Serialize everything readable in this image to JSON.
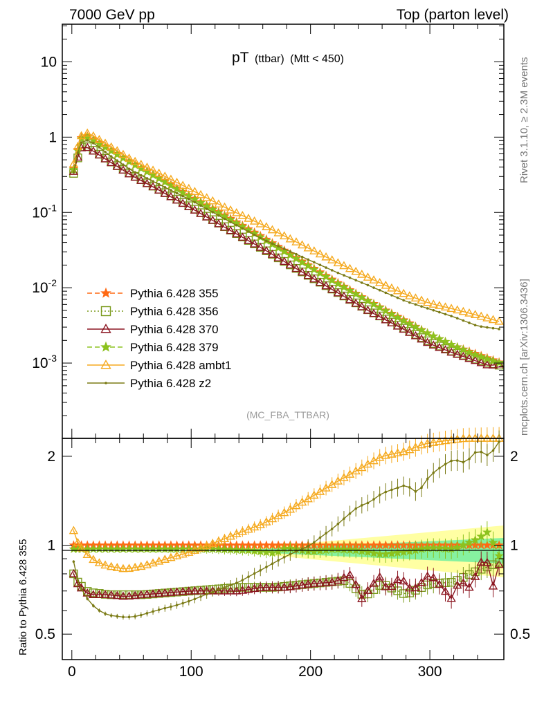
{
  "header": {
    "left": "7000 GeV pp",
    "right": "Top (parton level)"
  },
  "side_labels": {
    "rivet": "Rivet 3.1.10, ≥ 2.3M events",
    "mcplots": "mcplots.cern.ch [arXiv:1306.3436]"
  },
  "chart_data": {
    "type": "line",
    "title": {
      "main": "pT",
      "sub1": "(ttbar)",
      "sub2": "(Mtt < 450)"
    },
    "watermark": "(MC_FBA_TTBAR)",
    "xlim": [
      -8,
      362
    ],
    "x_ticks": [
      "0",
      "100",
      "200",
      "300"
    ],
    "main_panel": {
      "yscale": "log",
      "ylim": [
        0.0001,
        31.6
      ],
      "y_ticks": [
        {
          "base": "10",
          "exp": "-3",
          "value": 0.001
        },
        {
          "base": "10",
          "exp": "-2",
          "value": 0.01
        },
        {
          "base": "10",
          "exp": "-1",
          "value": 0.1
        },
        {
          "base": "1",
          "exp": "",
          "value": 1
        },
        {
          "base": "10",
          "exp": "",
          "value": 10
        }
      ]
    },
    "ratio_panel": {
      "ylabel": "Ratio to Pythia 6.428 355",
      "yscale": "log",
      "ylim": [
        0.41,
        2.3
      ],
      "y_ticks": [
        "0.5",
        "1",
        "2"
      ]
    },
    "series": [
      {
        "name": "Pythia 6.428 355",
        "color": "#ff6a14",
        "line": "dashed",
        "marker": "star",
        "points": [
          [
            1.5,
            0.38
          ],
          [
            5,
            0.68
          ],
          [
            8,
            0.98
          ],
          [
            12,
            1.05
          ],
          [
            15,
            1.0
          ],
          [
            20,
            0.9
          ],
          [
            30,
            0.72
          ],
          [
            50,
            0.46
          ],
          [
            70,
            0.31
          ],
          [
            100,
            0.163
          ],
          [
            130,
            0.088
          ],
          [
            160,
            0.047
          ],
          [
            190,
            0.024
          ],
          [
            220,
            0.0124
          ],
          [
            250,
            0.0065
          ],
          [
            280,
            0.0036
          ],
          [
            300,
            0.0024
          ],
          [
            320,
            0.0017
          ],
          [
            340,
            0.0013
          ],
          [
            360,
            0.001
          ]
        ],
        "ratio": [
          [
            1.5,
            1.0
          ],
          [
            360,
            1.0
          ]
        ]
      },
      {
        "name": "Pythia 6.428 356",
        "color": "#7a9a1c",
        "line": "dotted",
        "marker": "open-square",
        "points": [
          [
            1.5,
            0.33
          ],
          [
            5,
            0.53
          ],
          [
            8,
            0.74
          ],
          [
            12,
            0.76
          ],
          [
            15,
            0.72
          ],
          [
            20,
            0.64
          ],
          [
            30,
            0.5
          ],
          [
            50,
            0.32
          ],
          [
            70,
            0.215
          ],
          [
            100,
            0.118
          ],
          [
            130,
            0.062
          ],
          [
            160,
            0.033
          ],
          [
            190,
            0.0173
          ],
          [
            220,
            0.0092
          ],
          [
            250,
            0.0049
          ],
          [
            280,
            0.0028
          ],
          [
            300,
            0.0019
          ],
          [
            320,
            0.0014
          ],
          [
            340,
            0.0011
          ],
          [
            360,
            0.00092
          ]
        ],
        "ratio": [
          [
            1.5,
            0.8
          ],
          [
            5,
            0.75
          ],
          [
            10,
            0.71
          ],
          [
            15,
            0.69
          ],
          [
            20,
            0.69
          ],
          [
            30,
            0.68
          ],
          [
            45,
            0.68
          ],
          [
            60,
            0.68
          ],
          [
            80,
            0.69
          ],
          [
            100,
            0.7
          ],
          [
            140,
            0.72
          ],
          [
            170,
            0.72
          ],
          [
            200,
            0.74
          ],
          [
            230,
            0.76
          ],
          [
            245,
            0.67
          ],
          [
            260,
            0.74
          ],
          [
            280,
            0.68
          ],
          [
            300,
            0.74
          ],
          [
            320,
            0.75
          ],
          [
            340,
            0.82
          ],
          [
            360,
            0.88
          ]
        ]
      },
      {
        "name": "Pythia 6.428 370",
        "color": "#8b1520",
        "line": "solid",
        "marker": "open-triangle",
        "points": [
          [
            1.5,
            0.35
          ],
          [
            5,
            0.54
          ],
          [
            8,
            0.72
          ],
          [
            12,
            0.74
          ],
          [
            15,
            0.7
          ],
          [
            20,
            0.62
          ],
          [
            30,
            0.49
          ],
          [
            50,
            0.31
          ],
          [
            70,
            0.21
          ],
          [
            100,
            0.114
          ],
          [
            130,
            0.061
          ],
          [
            160,
            0.033
          ],
          [
            190,
            0.0172
          ],
          [
            220,
            0.0091
          ],
          [
            250,
            0.0048
          ],
          [
            280,
            0.0027
          ],
          [
            300,
            0.0018
          ],
          [
            320,
            0.00135
          ],
          [
            340,
            0.00105
          ],
          [
            350,
            0.00092
          ],
          [
            360,
            0.00098
          ]
        ],
        "ratio": [
          [
            1.5,
            0.8
          ],
          [
            5,
            0.74
          ],
          [
            10,
            0.7
          ],
          [
            15,
            0.68
          ],
          [
            20,
            0.68
          ],
          [
            30,
            0.68
          ],
          [
            45,
            0.67
          ],
          [
            60,
            0.68
          ],
          [
            80,
            0.69
          ],
          [
            100,
            0.7
          ],
          [
            120,
            0.7
          ],
          [
            140,
            0.7
          ],
          [
            160,
            0.72
          ],
          [
            180,
            0.72
          ],
          [
            200,
            0.74
          ],
          [
            220,
            0.75
          ],
          [
            235,
            0.8
          ],
          [
            242,
            0.65
          ],
          [
            250,
            0.72
          ],
          [
            258,
            0.78
          ],
          [
            265,
            0.7
          ],
          [
            275,
            0.78
          ],
          [
            285,
            0.7
          ],
          [
            292,
            0.74
          ],
          [
            300,
            0.8
          ],
          [
            310,
            0.72
          ],
          [
            318,
            0.66
          ],
          [
            325,
            0.76
          ],
          [
            333,
            0.72
          ],
          [
            341,
            0.82
          ],
          [
            346,
            0.96
          ],
          [
            352,
            0.7
          ],
          [
            358,
            0.86
          ]
        ]
      },
      {
        "name": "Pythia 6.428 379",
        "color": "#8cc21e",
        "line": "dashed",
        "marker": "star",
        "points": [
          [
            1.5,
            0.37
          ],
          [
            5,
            0.66
          ],
          [
            8,
            0.95
          ],
          [
            12,
            1.02
          ],
          [
            15,
            0.97
          ],
          [
            20,
            0.87
          ],
          [
            30,
            0.7
          ],
          [
            50,
            0.45
          ],
          [
            70,
            0.3
          ],
          [
            100,
            0.158
          ],
          [
            130,
            0.085
          ],
          [
            160,
            0.045
          ],
          [
            190,
            0.0232
          ],
          [
            220,
            0.012
          ],
          [
            250,
            0.0064
          ],
          [
            280,
            0.0035
          ],
          [
            300,
            0.0024
          ],
          [
            320,
            0.0017
          ],
          [
            340,
            0.00125
          ],
          [
            360,
            0.00098
          ]
        ],
        "ratio": [
          [
            1.5,
            0.97
          ],
          [
            10,
            0.97
          ],
          [
            30,
            0.97
          ],
          [
            60,
            0.97
          ],
          [
            90,
            0.97
          ],
          [
            120,
            0.97
          ],
          [
            150,
            0.96
          ],
          [
            170,
            0.94
          ],
          [
            180,
            0.98
          ],
          [
            200,
            0.95
          ],
          [
            220,
            0.97
          ],
          [
            240,
            0.96
          ],
          [
            260,
            0.93
          ],
          [
            280,
            0.95
          ],
          [
            300,
            0.98
          ],
          [
            320,
            0.97
          ],
          [
            340,
            1.05
          ],
          [
            350,
            1.12
          ],
          [
            356,
            0.92
          ]
        ]
      },
      {
        "name": "Pythia 6.428 ambt1",
        "color": "#f5a91e",
        "line": "solid",
        "marker": "open-triangle",
        "points": [
          [
            1.5,
            0.44
          ],
          [
            5,
            0.75
          ],
          [
            8,
            1.04
          ],
          [
            12,
            1.14
          ],
          [
            15,
            1.1
          ],
          [
            20,
            0.99
          ],
          [
            30,
            0.79
          ],
          [
            50,
            0.5
          ],
          [
            70,
            0.35
          ],
          [
            100,
            0.2
          ],
          [
            130,
            0.113
          ],
          [
            160,
            0.068
          ],
          [
            190,
            0.039
          ],
          [
            220,
            0.0225
          ],
          [
            250,
            0.0133
          ],
          [
            280,
            0.0081
          ],
          [
            300,
            0.0062
          ],
          [
            320,
            0.0052
          ],
          [
            340,
            0.0043
          ],
          [
            360,
            0.0035
          ]
        ],
        "ratio": [
          [
            1.5,
            1.12
          ],
          [
            5,
            1.02
          ],
          [
            10,
            0.95
          ],
          [
            20,
            0.88
          ],
          [
            30,
            0.85
          ],
          [
            45,
            0.83
          ],
          [
            60,
            0.85
          ],
          [
            80,
            0.9
          ],
          [
            100,
            0.95
          ],
          [
            120,
            1.02
          ],
          [
            140,
            1.1
          ],
          [
            160,
            1.18
          ],
          [
            180,
            1.3
          ],
          [
            200,
            1.45
          ],
          [
            220,
            1.62
          ],
          [
            240,
            1.8
          ],
          [
            260,
            2.0
          ],
          [
            280,
            2.08
          ],
          [
            295,
            2.2
          ],
          [
            310,
            2.25
          ],
          [
            330,
            2.3
          ],
          [
            345,
            2.3
          ],
          [
            360,
            2.3
          ]
        ]
      },
      {
        "name": "Pythia 6.428 z2",
        "color": "#7a7a14",
        "line": "solid",
        "marker": "dot",
        "points": [
          [
            1.5,
            0.34
          ],
          [
            5,
            0.62
          ],
          [
            8,
            0.85
          ],
          [
            12,
            0.92
          ],
          [
            15,
            0.88
          ],
          [
            20,
            0.8
          ],
          [
            30,
            0.6
          ],
          [
            50,
            0.36
          ],
          [
            70,
            0.25
          ],
          [
            100,
            0.145
          ],
          [
            130,
            0.079
          ],
          [
            160,
            0.044
          ],
          [
            190,
            0.027
          ],
          [
            220,
            0.0165
          ],
          [
            250,
            0.0105
          ],
          [
            280,
            0.0066
          ],
          [
            300,
            0.0052
          ],
          [
            320,
            0.0041
          ],
          [
            340,
            0.0031
          ],
          [
            360,
            0.0028
          ]
        ],
        "ratio": [
          [
            1.5,
            0.88
          ],
          [
            5,
            0.76
          ],
          [
            10,
            0.68
          ],
          [
            20,
            0.61
          ],
          [
            30,
            0.58
          ],
          [
            45,
            0.57
          ],
          [
            55,
            0.575
          ],
          [
            70,
            0.6
          ],
          [
            90,
            0.63
          ],
          [
            100,
            0.65
          ],
          [
            120,
            0.7
          ],
          [
            140,
            0.75
          ],
          [
            160,
            0.83
          ],
          [
            180,
            0.92
          ],
          [
            200,
            1.0
          ],
          [
            220,
            1.15
          ],
          [
            240,
            1.35
          ],
          [
            250,
            1.4
          ],
          [
            260,
            1.5
          ],
          [
            280,
            1.6
          ],
          [
            290,
            1.5
          ],
          [
            300,
            1.72
          ],
          [
            310,
            1.85
          ],
          [
            320,
            1.95
          ],
          [
            330,
            1.9
          ],
          [
            340,
            2.1
          ],
          [
            350,
            2.0
          ],
          [
            360,
            2.3
          ]
        ]
      }
    ]
  }
}
